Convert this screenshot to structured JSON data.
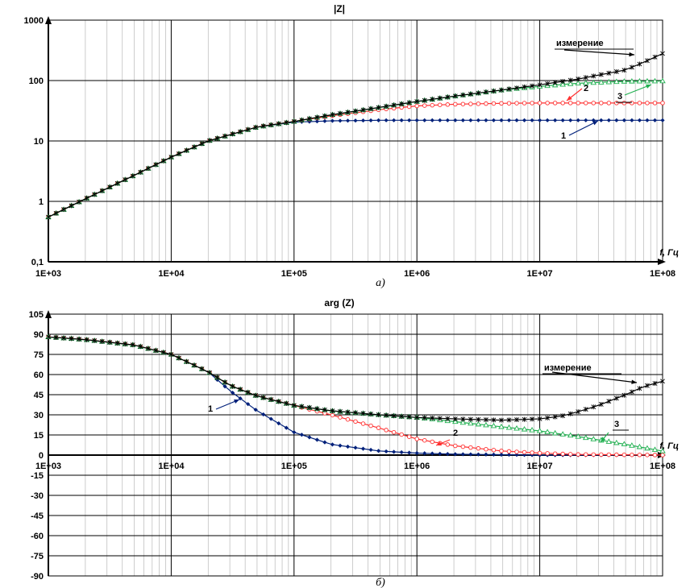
{
  "chart_data": [
    {
      "type": "line",
      "title": "|Z|",
      "xlabel": "f, Гц",
      "ylabel": "",
      "caption": "а)",
      "x_scale": "log",
      "y_scale": "log",
      "xlim": [
        1000,
        100000000
      ],
      "ylim": [
        0.1,
        1000
      ],
      "grid": true,
      "x_ticks": [
        1000,
        10000,
        100000,
        1000000,
        10000000,
        100000000
      ],
      "x_tick_labels": [
        "1E+03",
        "1E+04",
        "1E+05",
        "1E+06",
        "1E+07",
        "1E+08"
      ],
      "y_ticks": [
        0.1,
        1,
        10,
        100,
        1000
      ],
      "y_tick_labels": [
        "0,1",
        "1",
        "10",
        "100",
        "1000"
      ],
      "series": [
        {
          "name": "1",
          "color": "#00207a",
          "marker": "diamond",
          "x": [
            1000,
            2000,
            5000,
            10000,
            20000,
            50000,
            100000,
            200000,
            500000,
            1000000,
            10000000,
            100000000
          ],
          "y": [
            0.55,
            1.1,
            2.7,
            5.4,
            10,
            17,
            20.5,
            21.5,
            22,
            22,
            22,
            22
          ]
        },
        {
          "name": "2",
          "color": "#ff3030",
          "marker": "circle",
          "x": [
            1000,
            2000,
            5000,
            10000,
            20000,
            50000,
            100000,
            200000,
            500000,
            1000000,
            2000000,
            5000000,
            10000000,
            100000000
          ],
          "y": [
            0.55,
            1.1,
            2.7,
            5.4,
            10,
            17,
            21,
            26,
            33,
            38,
            40.5,
            42,
            42.5,
            42.5
          ]
        },
        {
          "name": "3",
          "color": "#20b050",
          "marker": "triangle",
          "x": [
            1000,
            2000,
            5000,
            10000,
            20000,
            50000,
            100000,
            200000,
            500000,
            1000000,
            2000000,
            5000000,
            10000000,
            20000000,
            50000000,
            100000000
          ],
          "y": [
            0.55,
            1.1,
            2.7,
            5.4,
            10,
            17,
            21,
            27,
            36,
            45,
            55,
            70,
            80,
            90,
            97,
            98
          ]
        },
        {
          "name": "измерение",
          "color": "#000000",
          "marker": "star",
          "x": [
            1000,
            2000,
            5000,
            10000,
            20000,
            50000,
            100000,
            200000,
            500000,
            1000000,
            2000000,
            5000000,
            10000000,
            20000000,
            50000000,
            70000000,
            100000000
          ],
          "y": [
            0.55,
            1.1,
            2.7,
            5.4,
            10,
            17,
            21,
            27,
            36,
            45,
            55,
            70,
            85,
            105,
            150,
            200,
            280
          ]
        }
      ],
      "annotations": [
        "измерение",
        "1",
        "2",
        "3"
      ]
    },
    {
      "type": "line",
      "title": "arg (Z)",
      "xlabel": "f, Гц",
      "ylabel": "",
      "caption": "б)",
      "x_scale": "log",
      "y_scale": "linear",
      "xlim": [
        1000,
        100000000
      ],
      "ylim": [
        -90,
        105
      ],
      "grid": true,
      "x_ticks": [
        1000,
        10000,
        100000,
        1000000,
        10000000,
        100000000
      ],
      "x_tick_labels": [
        "1E+03",
        "1E+04",
        "1E+05",
        "1E+06",
        "1E+07",
        "1E+08"
      ],
      "y_ticks": [
        105,
        90,
        75,
        60,
        45,
        30,
        15,
        0,
        -15,
        -30,
        -45,
        -60,
        -75,
        -90
      ],
      "y_tick_labels": [
        "105",
        "90",
        "75",
        "60",
        "45",
        "30",
        "15",
        "0",
        "-15",
        "-30",
        "-45",
        "-60",
        "-75",
        "-90"
      ],
      "series": [
        {
          "name": "1",
          "color": "#00207a",
          "marker": "diamond",
          "x": [
            1000,
            2000,
            5000,
            10000,
            20000,
            30000,
            50000,
            100000,
            200000,
            500000,
            1000000,
            2000000,
            10000000,
            100000000
          ],
          "y": [
            88,
            86,
            82,
            75,
            62,
            48,
            33,
            17,
            8,
            3,
            1.5,
            0.7,
            0,
            0
          ]
        },
        {
          "name": "2",
          "color": "#ff3030",
          "marker": "circle",
          "x": [
            1000,
            2000,
            5000,
            10000,
            20000,
            30000,
            50000,
            100000,
            200000,
            500000,
            1000000,
            2000000,
            5000000,
            10000000,
            20000000,
            100000000
          ],
          "y": [
            88,
            86,
            82,
            75,
            62,
            52,
            44,
            37,
            30,
            20,
            12,
            7,
            3,
            1.5,
            0.5,
            0
          ]
        },
        {
          "name": "3",
          "color": "#20b050",
          "marker": "triangle",
          "x": [
            1000,
            2000,
            5000,
            10000,
            20000,
            30000,
            50000,
            100000,
            200000,
            500000,
            1000000,
            2000000,
            5000000,
            10000000,
            20000000,
            50000000,
            100000000
          ],
          "y": [
            88,
            86,
            82,
            75,
            62,
            52,
            44,
            37,
            33,
            30,
            28,
            25,
            21,
            18,
            14,
            8,
            3
          ]
        },
        {
          "name": "измерение",
          "color": "#000000",
          "marker": "star",
          "x": [
            1000,
            2000,
            5000,
            10000,
            20000,
            30000,
            50000,
            100000,
            200000,
            500000,
            1000000,
            2000000,
            5000000,
            10000000,
            15000000,
            20000000,
            30000000,
            50000000,
            70000000,
            100000000
          ],
          "y": [
            88,
            86,
            82,
            75,
            62,
            52,
            44,
            37,
            33,
            30,
            28,
            27,
            26,
            27,
            29,
            32,
            37,
            45,
            51,
            55
          ]
        }
      ],
      "annotations": [
        "измерение",
        "1",
        "2",
        "3"
      ]
    }
  ]
}
